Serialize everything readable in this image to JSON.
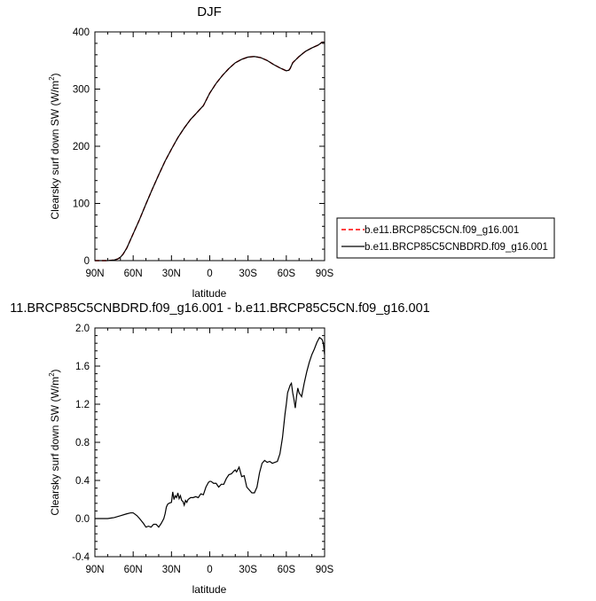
{
  "chart_data": [
    {
      "type": "line",
      "title": "DJF",
      "xlabel": "latitude",
      "ylabel": "Clearsky surf down SW (W/m",
      "ylabel_sup": "2",
      "ylabel_end": ")",
      "xlim": [
        90,
        -90
      ],
      "ylim": [
        0,
        400
      ],
      "xticks": [
        90,
        60,
        30,
        0,
        -30,
        -60,
        -90
      ],
      "xtick_labels": [
        "90N",
        "60N",
        "30N",
        "0",
        "30S",
        "60S",
        "90S"
      ],
      "yticks": [
        0,
        100,
        200,
        300,
        400
      ],
      "ytick_labels": [
        "0",
        "100",
        "200",
        "300",
        "400"
      ],
      "legend_position": "right",
      "series": [
        {
          "name": "b.e11.BRCP85C5CN.f09_g16.001",
          "color": "#ff0000",
          "dash": "dashed",
          "x": [
            90,
            85,
            80,
            75,
            72,
            70,
            68,
            65,
            62,
            60,
            55,
            50,
            45,
            40,
            35,
            30,
            25,
            20,
            15,
            10,
            5,
            0,
            -5,
            -10,
            -15,
            -20,
            -25,
            -30,
            -35,
            -40,
            -45,
            -50,
            -55,
            -58,
            -60,
            -62,
            -63,
            -65,
            -70,
            -75,
            -80,
            -85,
            -88,
            -90
          ],
          "y": [
            0,
            0,
            0,
            1,
            3,
            6,
            11,
            22,
            37,
            47,
            72,
            99,
            125,
            150,
            174,
            195,
            215,
            232,
            247,
            259,
            271,
            293,
            310,
            324,
            336,
            346,
            352,
            356,
            357,
            355,
            350,
            343,
            337,
            334,
            332,
            333,
            336,
            346,
            357,
            366,
            372,
            377,
            382,
            382
          ]
        },
        {
          "name": "b.e11.BRCP85C5CNBDRD.f09_g16.001",
          "color": "#000000",
          "dash": "solid",
          "x": [
            90,
            85,
            80,
            75,
            72,
            70,
            68,
            65,
            62,
            60,
            55,
            50,
            45,
            40,
            35,
            30,
            25,
            20,
            15,
            10,
            5,
            0,
            -5,
            -10,
            -15,
            -20,
            -25,
            -30,
            -35,
            -40,
            -45,
            -50,
            -55,
            -58,
            -60,
            -62,
            -63,
            -65,
            -70,
            -75,
            -80,
            -85,
            -88,
            -90
          ],
          "y": [
            0,
            0,
            0,
            1,
            3,
            6,
            11,
            22,
            37,
            47,
            72,
            99,
            125,
            150,
            174,
            195,
            215,
            232,
            247,
            259,
            271,
            293,
            310,
            324,
            336,
            346,
            352,
            356,
            357,
            355,
            350,
            343,
            337,
            334,
            332,
            333,
            336,
            346,
            357,
            366,
            372,
            377,
            382,
            382
          ]
        }
      ]
    },
    {
      "type": "line",
      "title": "11.BRCP85C5CNBDRD.f09_g16.001 - b.e11.BRCP85C5CN.f09_g16.001",
      "xlabel": "latitude",
      "ylabel": "Clearsky surf down SW (W/m",
      "ylabel_sup": "2",
      "ylabel_end": ")",
      "xlim": [
        90,
        -90
      ],
      "ylim": [
        -0.4,
        2.0
      ],
      "xticks": [
        90,
        60,
        30,
        0,
        -30,
        -60,
        -90
      ],
      "xtick_labels": [
        "90N",
        "60N",
        "30N",
        "0",
        "30S",
        "60S",
        "90S"
      ],
      "yticks": [
        -0.4,
        0,
        0.4,
        0.8,
        1.2,
        1.6,
        2.0
      ],
      "ytick_labels": [
        "-0.4",
        "0.0",
        "0.4",
        "0.8",
        "1.2",
        "1.6",
        "2.0"
      ],
      "series": [
        {
          "name": "",
          "color": "#000000",
          "dash": "solid",
          "x": [
            90,
            80,
            75,
            70,
            65,
            62,
            60,
            57,
            55,
            52,
            50,
            48,
            46,
            44,
            42,
            40,
            38,
            36,
            35,
            34,
            33,
            32,
            30,
            29,
            28,
            27,
            26,
            25,
            24,
            23,
            22,
            21,
            20,
            19,
            18,
            17,
            15,
            13,
            11,
            9,
            7,
            5,
            3,
            1,
            0,
            -1,
            -3,
            -5,
            -7,
            -9,
            -11,
            -13,
            -15,
            -17,
            -19,
            -20,
            -21,
            -23,
            -25,
            -27,
            -29,
            -31,
            -33,
            -35,
            -37,
            -39,
            -41,
            -43,
            -45,
            -47,
            -49,
            -51,
            -53,
            -55,
            -57,
            -59,
            -60,
            -61,
            -63,
            -64,
            -65,
            -66,
            -67,
            -68,
            -69,
            -70,
            -72,
            -74,
            -76,
            -78,
            -80,
            -82,
            -84,
            -86,
            -88,
            -89,
            -90
          ],
          "y": [
            0.0,
            0.0,
            0.01,
            0.03,
            0.05,
            0.06,
            0.06,
            0.03,
            0.0,
            -0.05,
            -0.09,
            -0.08,
            -0.09,
            -0.06,
            -0.06,
            -0.09,
            -0.05,
            0.0,
            0.05,
            0.12,
            0.15,
            0.16,
            0.17,
            0.28,
            0.2,
            0.24,
            0.22,
            0.27,
            0.21,
            0.24,
            0.19,
            0.18,
            0.14,
            0.19,
            0.17,
            0.2,
            0.22,
            0.22,
            0.23,
            0.22,
            0.26,
            0.25,
            0.33,
            0.38,
            0.39,
            0.39,
            0.37,
            0.37,
            0.33,
            0.36,
            0.36,
            0.42,
            0.46,
            0.47,
            0.5,
            0.51,
            0.49,
            0.54,
            0.44,
            0.45,
            0.33,
            0.3,
            0.27,
            0.27,
            0.33,
            0.48,
            0.58,
            0.61,
            0.59,
            0.6,
            0.58,
            0.59,
            0.6,
            0.68,
            0.85,
            1.1,
            1.2,
            1.32,
            1.4,
            1.42,
            1.32,
            1.25,
            1.16,
            1.28,
            1.37,
            1.32,
            1.28,
            1.42,
            1.54,
            1.64,
            1.72,
            1.78,
            1.85,
            1.9,
            1.88,
            1.84,
            1.72
          ]
        }
      ]
    }
  ]
}
